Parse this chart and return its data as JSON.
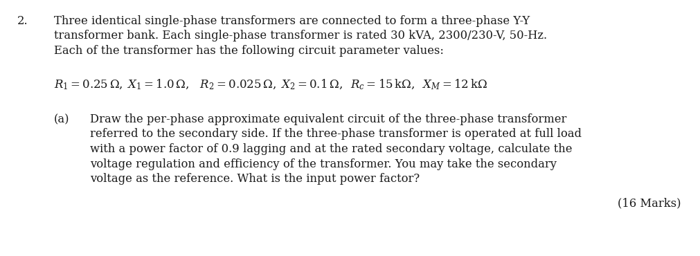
{
  "background_color": "#ffffff",
  "text_color": "#1a1a1a",
  "fig_width": 10.12,
  "fig_height": 3.7,
  "dpi": 100,
  "number": "2.",
  "p1a": "Three identical single-phase transformers are connected to form a three-phase Y-Y",
  "p1b": "transformer bank. Each single-phase transformer is rated 30 kVA, 2300/230-V, 50-Hz.",
  "p1c": "Each of the transformer has the following circuit parameter values:",
  "equation": "$R_1 = 0.25\\,\\Omega,\\; X_1 = 1.0\\,\\Omega,\\;\\;\\; R_2 = 0.025\\,\\Omega,\\; X_2 = 0.1\\,\\Omega,\\;\\; R_c = 15\\,\\mathrm{k}\\Omega,\\;\\; X_M = 12\\,\\mathrm{k}\\Omega$",
  "part_label": "(a)",
  "pa1": "Draw the per-phase approximate equivalent circuit of the three-phase transformer",
  "pa2": "referred to the secondary side. If the three-phase transformer is operated at full load",
  "pa3": "with a power factor of 0.9 lagging and at the rated secondary voltage, calculate the",
  "pa4": "voltage regulation and efficiency of the transformer. You may take the secondary",
  "pa5": "voltage as the reference. What is the input power factor?",
  "marks": "(16 Marks)",
  "font_size": 11.8,
  "font_size_eq": 12.0,
  "font_family": "DejaVu Serif"
}
